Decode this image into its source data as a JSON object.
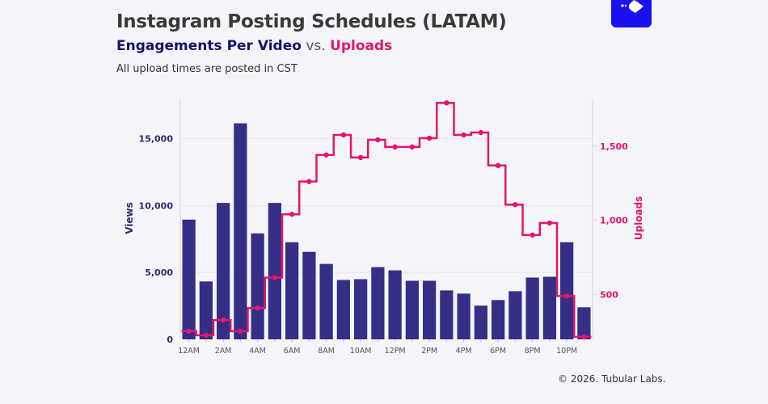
{
  "header": {
    "title": "Instagram Posting Schedules (LATAM)",
    "subtitle_part1": "Engagements Per Video",
    "subtitle_vs": " vs. ",
    "subtitle_part2": "Uploads",
    "note": "All upload times are posted in CST"
  },
  "logo": {
    "icon": "tubular-labs-logo-icon",
    "color": "#1a10f0"
  },
  "footer": {
    "copyright": "© 2026. Tubular Labs."
  },
  "colors": {
    "bars": "#342f85",
    "line": "#e5146c",
    "left_axis": "#2e2a6e",
    "right_axis": "#e5146c",
    "grid": "#e6e7ec"
  },
  "chart_data": {
    "type": "bar+step-line",
    "title": "Instagram Posting Schedules (LATAM)",
    "categories": [
      "12AM",
      "1AM",
      "2AM",
      "3AM",
      "4AM",
      "5AM",
      "6AM",
      "7AM",
      "8AM",
      "9AM",
      "10AM",
      "11AM",
      "12PM",
      "1PM",
      "2PM",
      "3PM",
      "4PM",
      "5PM",
      "6PM",
      "7PM",
      "8PM",
      "9PM",
      "10PM",
      "11PM"
    ],
    "x_tick_labels": [
      "12AM",
      "2AM",
      "4AM",
      "6AM",
      "8AM",
      "10AM",
      "12PM",
      "2PM",
      "4PM",
      "6PM",
      "8PM",
      "10PM"
    ],
    "series": [
      {
        "name": "Engagements Per Video",
        "type": "bar",
        "axis": "left",
        "values": [
          8950,
          4330,
          10200,
          16150,
          7920,
          10200,
          7260,
          6540,
          5640,
          4440,
          4500,
          5400,
          5160,
          4380,
          4380,
          3660,
          3420,
          2520,
          2940,
          3600,
          4620,
          4680,
          7260,
          2400
        ]
      },
      {
        "name": "Uploads",
        "type": "step-line",
        "axis": "right",
        "values": [
          252,
          225,
          327,
          252,
          408,
          613,
          1040,
          1261,
          1440,
          1575,
          1423,
          1542,
          1494,
          1494,
          1553,
          1791,
          1575,
          1591,
          1369,
          1105,
          900,
          981,
          489,
          214
        ]
      }
    ],
    "left_axis": {
      "label": "Views",
      "ticks": [
        0,
        5000,
        10000,
        15000
      ],
      "tick_labels": [
        "0",
        "5,000",
        "10,000",
        "15,000"
      ],
      "range": [
        0,
        18000
      ]
    },
    "right_axis": {
      "label": "Uploads",
      "ticks": [
        500,
        1000,
        1500
      ],
      "tick_labels": [
        "500",
        "1,000",
        "1,500"
      ],
      "range": [
        197,
        1820
      ]
    },
    "grid": true,
    "legend": "none"
  }
}
